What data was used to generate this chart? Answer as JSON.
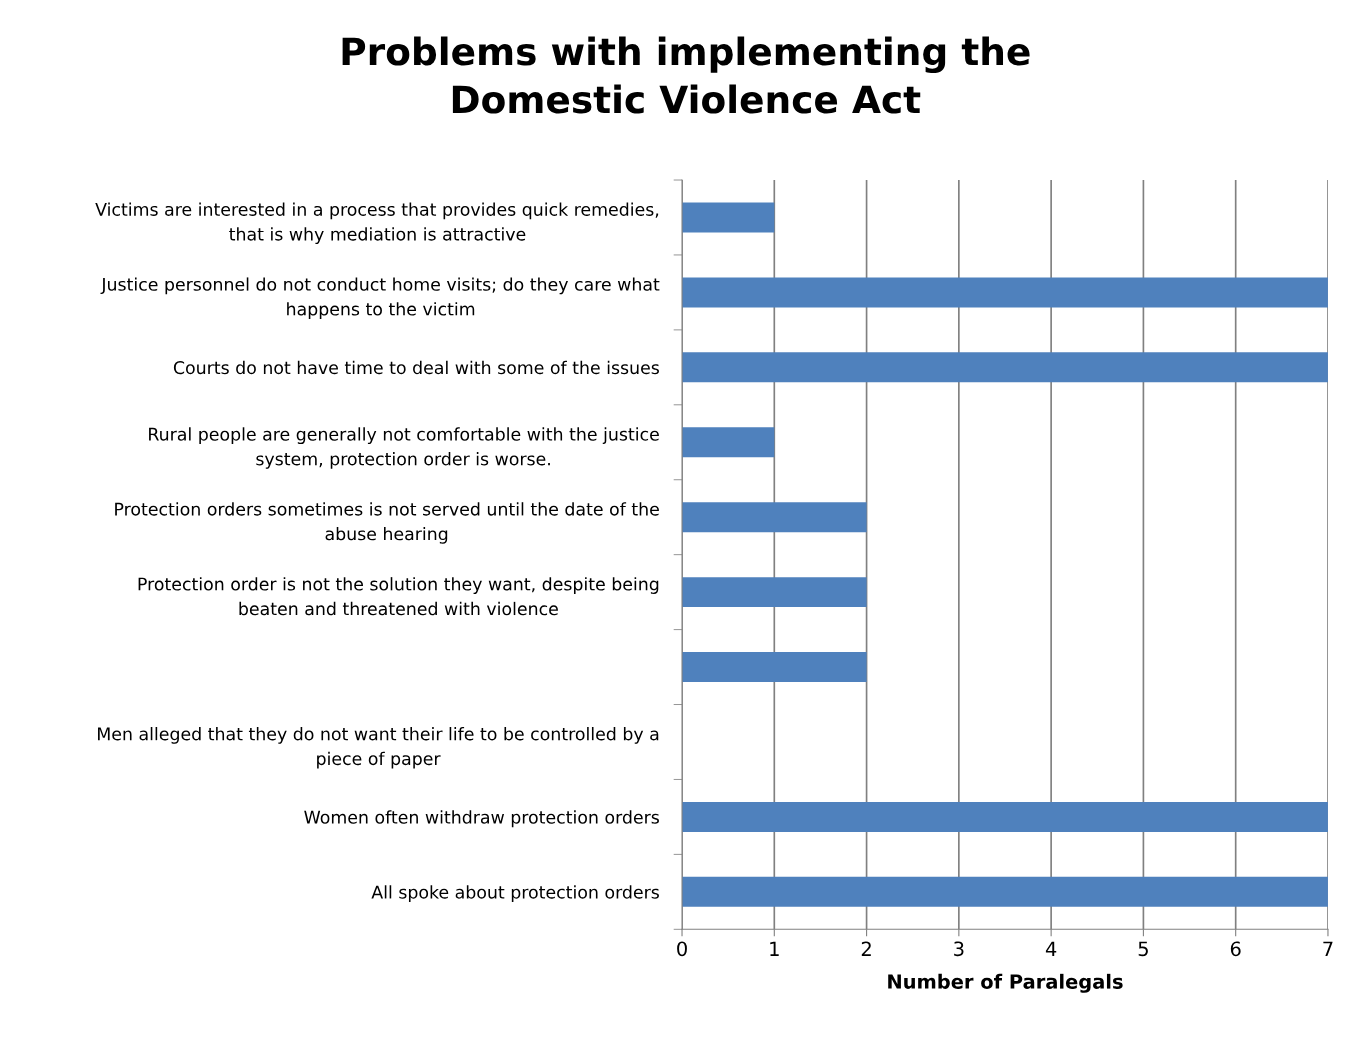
{
  "chart_data": {
    "type": "bar",
    "orientation": "horizontal",
    "title": "Problems with implementing the\nDomestic Violence Act",
    "xlabel": "Number of Paralegals",
    "categories": [
      "Victims are interested in a process that provides quick remedies,\nthat is why mediation is attractive",
      "Justice personnel do not conduct home visits; do they care what\nhappens to the victim",
      "Courts do not have time to deal with some of the issues",
      "Rural people are generally not comfortable with the justice\nsystem, protection order is worse.",
      "Protection orders sometimes is not served until the date of the\nabuse hearing",
      "Protection order is not the solution they want, despite being\nbeaten and threatened with violence",
      null,
      "Men alleged that they do not want their life to be controlled by a\npiece of paper",
      "Women often withdraw protection orders",
      "All spoke about protection orders"
    ],
    "values": [
      1,
      7,
      7,
      1,
      2,
      2,
      2,
      0,
      7,
      7
    ],
    "color": "#4f81bd",
    "xlim": [
      0,
      7
    ],
    "xticks": [
      0,
      1,
      2,
      3,
      4,
      5,
      6,
      7
    ],
    "grid": "x"
  }
}
